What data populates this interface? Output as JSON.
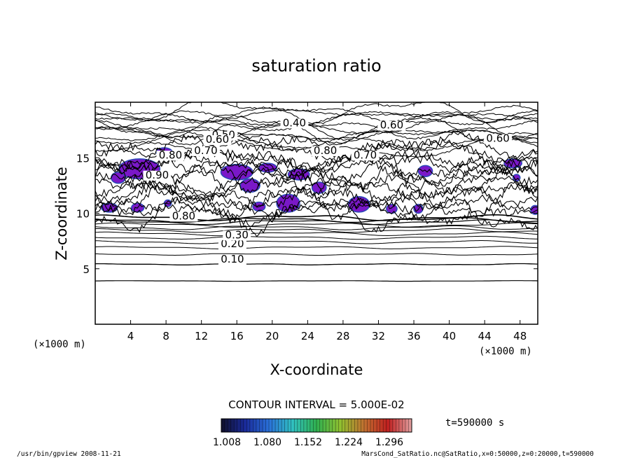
{
  "chart_data": {
    "type": "contour",
    "title": "saturation ratio",
    "xlabel": "X-coordinate",
    "ylabel": "Z-coordinate",
    "x_unit_label": "(×1000 m)",
    "x_ticks": [
      4,
      8,
      12,
      16,
      20,
      24,
      28,
      32,
      36,
      40,
      44,
      48
    ],
    "y_ticks": [
      5,
      10,
      15
    ],
    "xlim": [
      0,
      50
    ],
    "ylim": [
      0,
      20
    ],
    "contour_interval_label": "CONTOUR INTERVAL = 5.000E-02",
    "contour_labels": [
      "0.10",
      "0.20",
      "0.30",
      "0.40",
      "0.50",
      "0.60",
      "0.70",
      "0.80",
      "0.90"
    ],
    "colorbar_ticks": [
      "1.008",
      "1.080",
      "1.152",
      "1.224",
      "1.296"
    ],
    "colorbar_colors": [
      "#10102a",
      "#1a2a9a",
      "#2a70d8",
      "#30c0c0",
      "#30b050",
      "#90c030",
      "#c07030",
      "#c02020",
      "#e0a0a0"
    ],
    "shade_color": "#7a18c8",
    "shade_edge_color": "#2a4ab8",
    "time_label": "t=590000 s",
    "footer_left": "/usr/bin/gpview   2008-11-21",
    "footer_right": "MarsCond_SatRatio.nc@SatRatio,x=0:50000,z=0:20000,t=590000"
  }
}
